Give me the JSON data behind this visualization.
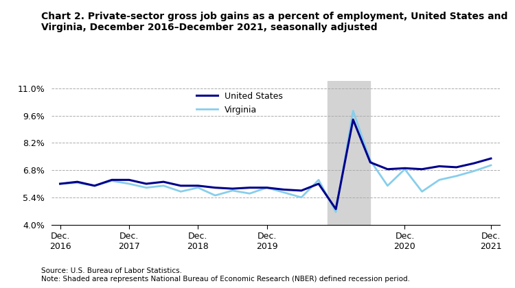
{
  "title": "Chart 2. Private-sector gross job gains as a percent of employment, United States and\nVirginia, December 2016–December 2021, seasonally adjusted",
  "source_note": "Source: U.S. Bureau of Labor Statistics.\nNote: Shaded area represents National Bureau of Economic Research (NBER) defined recession period.",
  "us_data": {
    "x": [
      0,
      1,
      2,
      3,
      4,
      5,
      6,
      7,
      8,
      9,
      10,
      11,
      12,
      13,
      14,
      15,
      16,
      17,
      18,
      19,
      20,
      21,
      22,
      23,
      24,
      25
    ],
    "y": [
      6.1,
      6.2,
      6.0,
      6.3,
      6.3,
      6.1,
      6.2,
      6.0,
      6.0,
      5.9,
      5.85,
      5.9,
      5.9,
      5.8,
      5.75,
      6.1,
      4.8,
      9.4,
      7.2,
      6.85,
      6.9,
      6.85,
      7.0,
      6.95,
      7.15,
      7.4
    ]
  },
  "va_data": {
    "x": [
      0,
      1,
      2,
      3,
      4,
      5,
      6,
      7,
      8,
      9,
      10,
      11,
      12,
      13,
      14,
      15,
      16,
      17,
      18,
      19,
      20,
      21,
      22,
      23,
      24,
      25
    ],
    "y": [
      6.1,
      6.15,
      6.0,
      6.25,
      6.1,
      5.9,
      6.0,
      5.7,
      5.9,
      5.5,
      5.75,
      5.6,
      5.9,
      5.65,
      5.4,
      6.3,
      4.65,
      9.85,
      7.3,
      6.0,
      6.85,
      5.7,
      6.3,
      6.5,
      6.75,
      7.05
    ]
  },
  "recession_start": 15.5,
  "recession_end": 18.0,
  "xtick_positions": [
    0,
    4,
    8,
    12,
    16,
    20,
    25
  ],
  "xtick_labels": [
    "Dec.\n2016",
    "Dec.\n2017",
    "Dec.\n2018",
    "Dec.\n2019",
    "",
    "Dec.\n2020",
    "Dec.\n2021"
  ],
  "xtick_positions_labeled": [
    0,
    4,
    8,
    12,
    20,
    25
  ],
  "xtick_labels_labeled": [
    "Dec.\n2016",
    "Dec.\n2017",
    "Dec.\n2018",
    "Dec.\n2019",
    "Dec.\n2020",
    "Dec.\n2021"
  ],
  "us_color": "#00008B",
  "va_color": "#87CEEB",
  "ylim": [
    4.0,
    11.4
  ],
  "yticks": [
    4.0,
    5.4,
    6.8,
    8.2,
    9.6,
    11.0
  ],
  "ytick_labels": [
    "4.0%",
    "5.4%",
    "6.8%",
    "8.2%",
    "9.6%",
    "11.0%"
  ],
  "xlim": [
    -0.5,
    25.5
  ],
  "recession_color": "#d3d3d3",
  "title_fontsize": 10,
  "label_fontsize": 9,
  "legend_us": "United States",
  "legend_va": "Virginia"
}
